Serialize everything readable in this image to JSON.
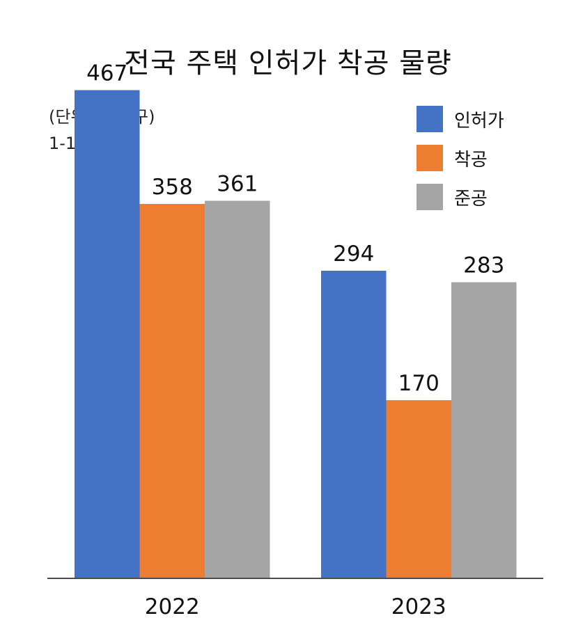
{
  "chart_data": {
    "type": "bar",
    "title": "전국 주택 인허가 착공 물량",
    "unit_note": "(단위: 천 가구)",
    "period_note": "1-11월 누계",
    "categories": [
      "2022",
      "2023"
    ],
    "series": [
      {
        "name": "인허가",
        "values": [
          467,
          294
        ],
        "color": "#4472C4"
      },
      {
        "name": "착공",
        "values": [
          358,
          170
        ],
        "color": "#ED7D31"
      },
      {
        "name": "준공",
        "values": [
          361,
          283
        ],
        "color": "#A5A5A5"
      }
    ],
    "xlabel": "",
    "ylabel": "",
    "ylim": [
      0,
      500
    ],
    "grid": false,
    "y_axis_visible": false,
    "legend_position": "top-right",
    "data_labels": true
  }
}
